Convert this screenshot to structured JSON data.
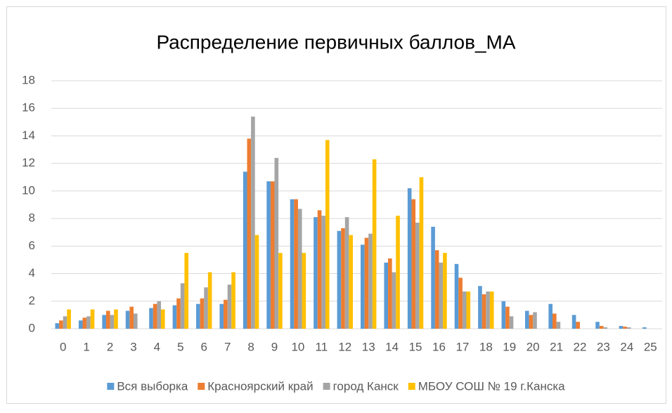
{
  "chart_data": {
    "type": "bar",
    "title": "Распределение первичных баллов_МА",
    "categories": [
      "0",
      "1",
      "2",
      "3",
      "4",
      "5",
      "6",
      "7",
      "8",
      "9",
      "10",
      "11",
      "12",
      "13",
      "14",
      "15",
      "16",
      "17",
      "18",
      "19",
      "20",
      "21",
      "22",
      "23",
      "24",
      "25"
    ],
    "series": [
      {
        "name": "Вся выборка",
        "color": "#5b9bd5",
        "values": [
          0.4,
          0.6,
          1.0,
          1.3,
          1.5,
          1.7,
          1.8,
          1.8,
          11.4,
          10.7,
          9.4,
          8.1,
          7.1,
          6.1,
          4.8,
          10.2,
          7.4,
          4.7,
          3.1,
          2.0,
          1.3,
          1.8,
          1.0,
          0.5,
          0.2,
          0.1
        ]
      },
      {
        "name": "Красноярский край",
        "color": "#ed7d31",
        "values": [
          0.6,
          0.8,
          1.3,
          1.6,
          1.8,
          2.2,
          2.2,
          2.1,
          13.8,
          10.7,
          9.4,
          8.6,
          7.3,
          6.6,
          5.1,
          9.4,
          5.7,
          3.7,
          2.5,
          1.6,
          1.0,
          1.1,
          0.5,
          0.2,
          0.15,
          0
        ]
      },
      {
        "name": "город Канск",
        "color": "#a5a5a5",
        "values": [
          0.9,
          0.9,
          1.0,
          1.1,
          2.0,
          3.3,
          3.0,
          3.2,
          15.4,
          12.4,
          8.7,
          8.2,
          8.1,
          6.9,
          4.1,
          7.7,
          4.8,
          2.7,
          2.7,
          0.9,
          1.2,
          0.5,
          0,
          0.1,
          0.1,
          0
        ]
      },
      {
        "name": "МБОУ СОШ № 19 г.Канска",
        "color": "#ffc000",
        "values": [
          1.4,
          1.4,
          1.4,
          0,
          1.4,
          5.5,
          4.1,
          4.1,
          6.8,
          5.5,
          5.5,
          13.7,
          6.8,
          12.3,
          8.2,
          11.0,
          5.5,
          2.7,
          2.7,
          0,
          0,
          0,
          0,
          0,
          0,
          0
        ]
      }
    ],
    "ylim": [
      0,
      18
    ],
    "yticks": [
      0,
      2,
      4,
      6,
      8,
      10,
      12,
      14,
      16,
      18
    ],
    "grid": true,
    "legend": "bottom"
  }
}
